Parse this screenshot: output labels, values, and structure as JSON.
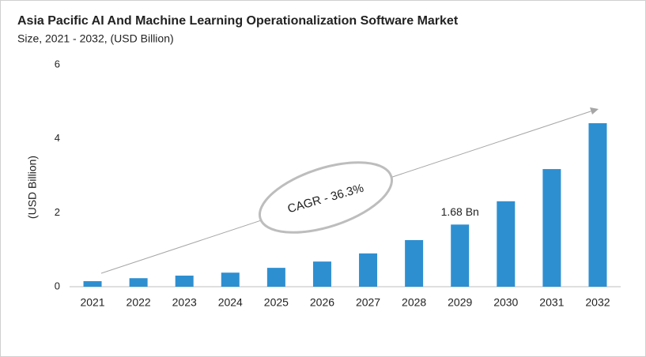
{
  "chart_data": {
    "type": "bar",
    "title": "Asia Pacific AI And Machine Learning Operationalization Software Market",
    "subtitle": "Size, 2021 - 2032, (USD Billion)",
    "y_label": "(USD Billion)",
    "annotation": "CAGR - 36.3%",
    "categories": [
      "2021",
      "2022",
      "2023",
      "2024",
      "2025",
      "2026",
      "2027",
      "2028",
      "2029",
      "2030",
      "2031",
      "2032"
    ],
    "values": [
      0.15,
      0.23,
      0.3,
      0.38,
      0.51,
      0.68,
      0.9,
      1.26,
      1.68,
      2.31,
      3.18,
      4.42
    ],
    "value_labels": [
      null,
      null,
      null,
      null,
      null,
      null,
      null,
      null,
      "1.68 Bn",
      null,
      null,
      null
    ],
    "color": "#2e8fd0",
    "ylim": [
      0,
      6
    ],
    "yticks": [
      0,
      2,
      4,
      6
    ],
    "grid": false
  }
}
